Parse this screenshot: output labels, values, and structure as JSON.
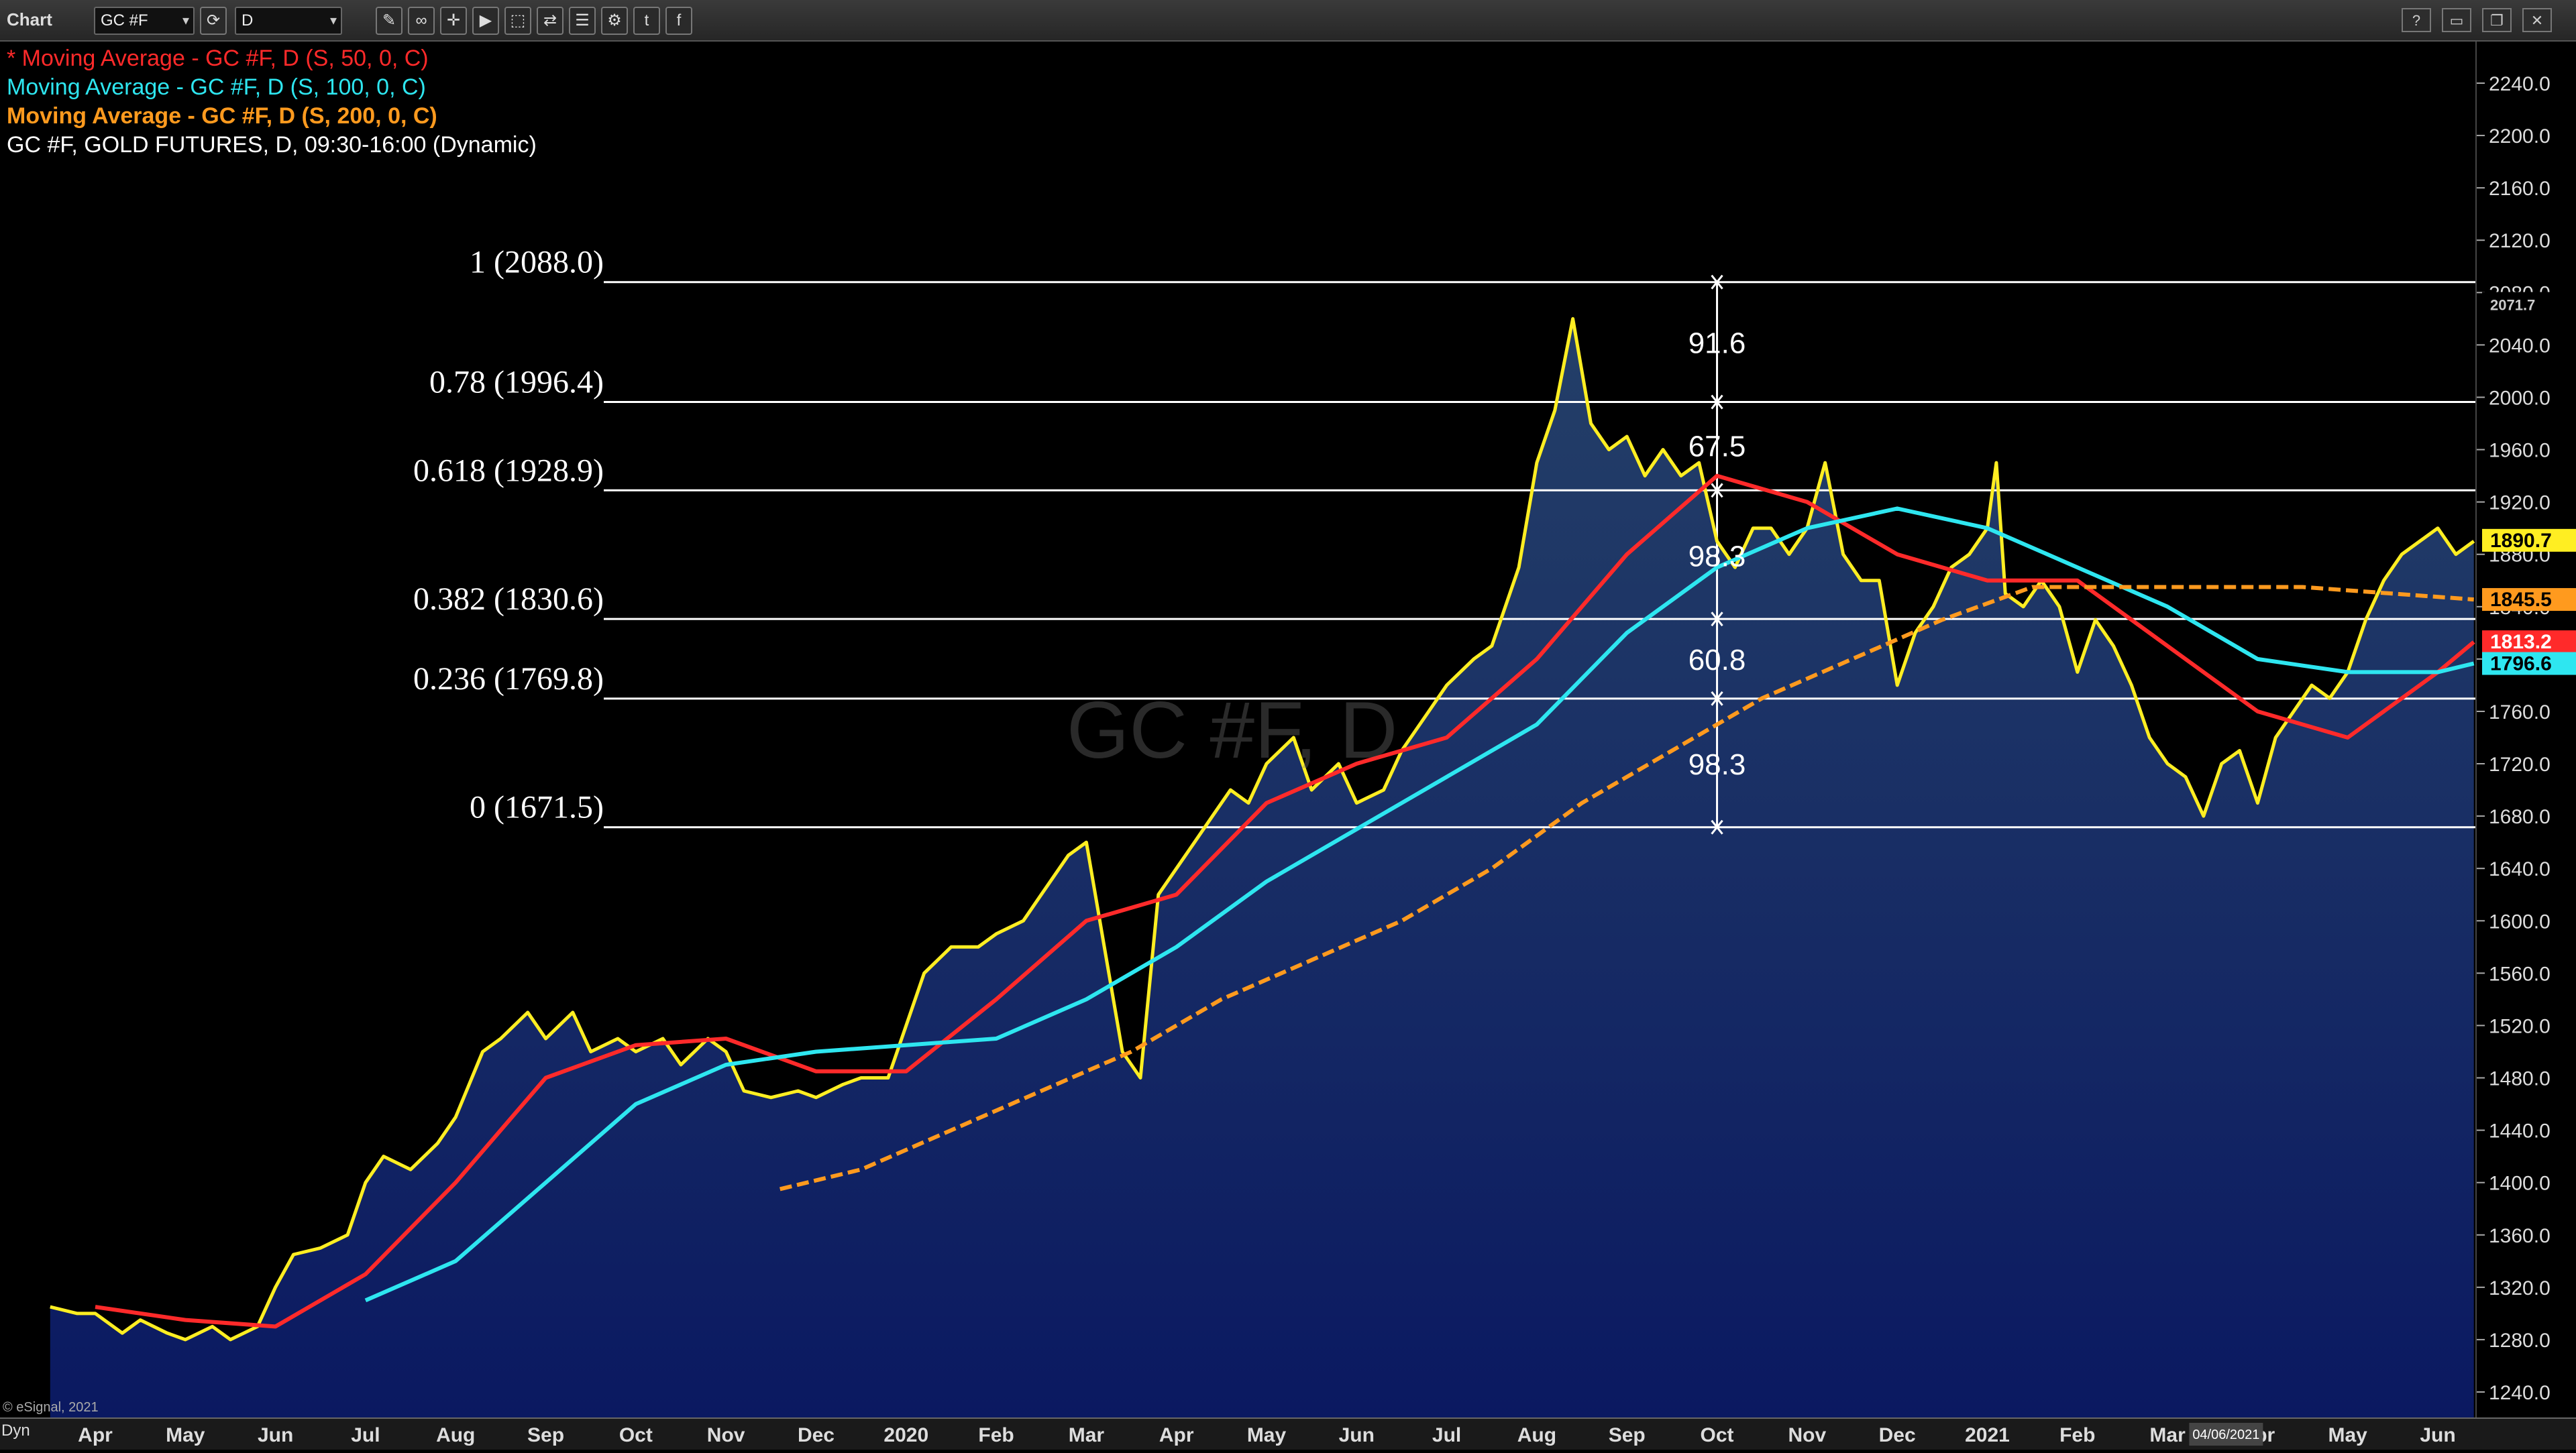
{
  "toolbar": {
    "title": "Chart",
    "symbol": "GC #F",
    "interval": "D",
    "tools": [
      "pencil-icon",
      "link-icon",
      "cursor-icon",
      "play-icon",
      "drawing-tool-icon",
      "share-icon",
      "layout-icon",
      "settings-icon",
      "twitter-icon",
      "facebook-icon"
    ]
  },
  "legend": [
    {
      "text": "* Moving Average - GC #F, D (S, 50, 0, C)",
      "color": "#ff2a2a"
    },
    {
      "text": "Moving Average - GC #F, D (S, 100, 0, C)",
      "color": "#2ee6f0"
    },
    {
      "text": "Moving Average - GC #F, D (S, 200, 0, C)",
      "color": "#ff9a1e"
    },
    {
      "text": "GC #F, GOLD FUTURES, D, 09:30-16:00 (Dynamic)",
      "color": "#ffffff"
    }
  ],
  "watermark": "GC #F, D",
  "copyright": "© eSignal, 2021",
  "bottom_left": "Dyn",
  "date_cursor": "04/06/2021",
  "chart_data": {
    "type": "line",
    "ylim": [
      1220,
      2270
    ],
    "y_ticks": [
      1240,
      1280,
      1320,
      1360,
      1400,
      1440,
      1480,
      1520,
      1560,
      1600,
      1640,
      1680,
      1720,
      1760,
      1800,
      1840,
      1880,
      1920,
      1960,
      2000,
      2040,
      2080,
      2120,
      2160,
      2200,
      2240
    ],
    "x_labels": [
      "Apr",
      "May",
      "Jun",
      "Jul",
      "Aug",
      "Sep",
      "Oct",
      "Nov",
      "Dec",
      "2020",
      "Feb",
      "Mar",
      "Apr",
      "May",
      "Jun",
      "Jul",
      "Aug",
      "Sep",
      "Oct",
      "Nov",
      "Dec",
      "2021",
      "Feb",
      "Mar",
      "Apr",
      "May",
      "Jun"
    ],
    "x_label_positions": [
      1,
      2,
      3,
      4,
      5,
      6,
      7,
      8,
      9,
      10,
      11,
      12,
      13,
      14,
      15,
      16,
      17,
      18,
      19,
      20,
      21,
      22,
      23,
      24,
      25,
      26,
      27
    ],
    "series": [
      {
        "name": "GC #F, GOLD FUTURES",
        "color": "#ffee22",
        "points": [
          [
            0.5,
            1305
          ],
          [
            0.8,
            1300
          ],
          [
            1.0,
            1300
          ],
          [
            1.3,
            1285
          ],
          [
            1.5,
            1295
          ],
          [
            1.8,
            1285
          ],
          [
            2.0,
            1280
          ],
          [
            2.3,
            1290
          ],
          [
            2.5,
            1280
          ],
          [
            2.8,
            1290
          ],
          [
            3.0,
            1320
          ],
          [
            3.2,
            1345
          ],
          [
            3.5,
            1350
          ],
          [
            3.8,
            1360
          ],
          [
            4.0,
            1400
          ],
          [
            4.2,
            1420
          ],
          [
            4.5,
            1410
          ],
          [
            4.8,
            1430
          ],
          [
            5.0,
            1450
          ],
          [
            5.3,
            1500
          ],
          [
            5.5,
            1510
          ],
          [
            5.8,
            1530
          ],
          [
            6.0,
            1510
          ],
          [
            6.3,
            1530
          ],
          [
            6.5,
            1500
          ],
          [
            6.8,
            1510
          ],
          [
            7.0,
            1500
          ],
          [
            7.3,
            1510
          ],
          [
            7.5,
            1490
          ],
          [
            7.8,
            1510
          ],
          [
            8.0,
            1500
          ],
          [
            8.2,
            1470
          ],
          [
            8.5,
            1465
          ],
          [
            8.8,
            1470
          ],
          [
            9.0,
            1465
          ],
          [
            9.3,
            1475
          ],
          [
            9.5,
            1480
          ],
          [
            9.8,
            1480
          ],
          [
            10.0,
            1520
          ],
          [
            10.2,
            1560
          ],
          [
            10.5,
            1580
          ],
          [
            10.8,
            1580
          ],
          [
            11.0,
            1590
          ],
          [
            11.3,
            1600
          ],
          [
            11.5,
            1620
          ],
          [
            11.8,
            1650
          ],
          [
            12.0,
            1660
          ],
          [
            12.2,
            1580
          ],
          [
            12.4,
            1500
          ],
          [
            12.6,
            1480
          ],
          [
            12.8,
            1620
          ],
          [
            13.0,
            1640
          ],
          [
            13.2,
            1660
          ],
          [
            13.4,
            1680
          ],
          [
            13.6,
            1700
          ],
          [
            13.8,
            1690
          ],
          [
            14.0,
            1720
          ],
          [
            14.3,
            1740
          ],
          [
            14.5,
            1700
          ],
          [
            14.8,
            1720
          ],
          [
            15.0,
            1690
          ],
          [
            15.3,
            1700
          ],
          [
            15.5,
            1730
          ],
          [
            15.8,
            1760
          ],
          [
            16.0,
            1780
          ],
          [
            16.3,
            1800
          ],
          [
            16.5,
            1810
          ],
          [
            16.8,
            1870
          ],
          [
            17.0,
            1950
          ],
          [
            17.2,
            1990
          ],
          [
            17.4,
            2060
          ],
          [
            17.6,
            1980
          ],
          [
            17.8,
            1960
          ],
          [
            18.0,
            1970
          ],
          [
            18.2,
            1940
          ],
          [
            18.4,
            1960
          ],
          [
            18.6,
            1940
          ],
          [
            18.8,
            1950
          ],
          [
            19.0,
            1890
          ],
          [
            19.2,
            1870
          ],
          [
            19.4,
            1900
          ],
          [
            19.6,
            1900
          ],
          [
            19.8,
            1880
          ],
          [
            20.0,
            1900
          ],
          [
            20.2,
            1950
          ],
          [
            20.4,
            1880
          ],
          [
            20.6,
            1860
          ],
          [
            20.8,
            1860
          ],
          [
            21.0,
            1780
          ],
          [
            21.2,
            1820
          ],
          [
            21.4,
            1840
          ],
          [
            21.6,
            1870
          ],
          [
            21.8,
            1880
          ],
          [
            22.0,
            1900
          ],
          [
            22.1,
            1950
          ],
          [
            22.2,
            1850
          ],
          [
            22.4,
            1840
          ],
          [
            22.6,
            1860
          ],
          [
            22.8,
            1840
          ],
          [
            23.0,
            1790
          ],
          [
            23.2,
            1830
          ],
          [
            23.4,
            1810
          ],
          [
            23.6,
            1780
          ],
          [
            23.8,
            1740
          ],
          [
            24.0,
            1720
          ],
          [
            24.2,
            1710
          ],
          [
            24.4,
            1680
          ],
          [
            24.6,
            1720
          ],
          [
            24.8,
            1730
          ],
          [
            25.0,
            1690
          ],
          [
            25.2,
            1740
          ],
          [
            25.4,
            1760
          ],
          [
            25.6,
            1780
          ],
          [
            25.8,
            1770
          ],
          [
            26.0,
            1790
          ],
          [
            26.2,
            1830
          ],
          [
            26.4,
            1860
          ],
          [
            26.6,
            1880
          ],
          [
            26.8,
            1890
          ],
          [
            27.0,
            1900
          ],
          [
            27.2,
            1880
          ],
          [
            27.4,
            1890
          ]
        ]
      },
      {
        "name": "MA 50",
        "color": "#ff2a2a",
        "points": [
          [
            1.0,
            1305
          ],
          [
            2.0,
            1295
          ],
          [
            3.0,
            1290
          ],
          [
            4.0,
            1330
          ],
          [
            5.0,
            1400
          ],
          [
            6.0,
            1480
          ],
          [
            7.0,
            1505
          ],
          [
            8.0,
            1510
          ],
          [
            9.0,
            1485
          ],
          [
            10.0,
            1485
          ],
          [
            11.0,
            1540
          ],
          [
            12.0,
            1600
          ],
          [
            13.0,
            1620
          ],
          [
            14.0,
            1690
          ],
          [
            15.0,
            1720
          ],
          [
            16.0,
            1740
          ],
          [
            17.0,
            1800
          ],
          [
            18.0,
            1880
          ],
          [
            19.0,
            1940
          ],
          [
            20.0,
            1920
          ],
          [
            21.0,
            1880
          ],
          [
            22.0,
            1860
          ],
          [
            23.0,
            1860
          ],
          [
            24.0,
            1810
          ],
          [
            25.0,
            1760
          ],
          [
            26.0,
            1740
          ],
          [
            27.0,
            1790
          ],
          [
            27.4,
            1813
          ]
        ]
      },
      {
        "name": "MA 100",
        "color": "#2ee6f0",
        "points": [
          [
            4.0,
            1310
          ],
          [
            5.0,
            1340
          ],
          [
            6.0,
            1400
          ],
          [
            7.0,
            1460
          ],
          [
            8.0,
            1490
          ],
          [
            9.0,
            1500
          ],
          [
            10.0,
            1505
          ],
          [
            11.0,
            1510
          ],
          [
            12.0,
            1540
          ],
          [
            13.0,
            1580
          ],
          [
            14.0,
            1630
          ],
          [
            15.0,
            1670
          ],
          [
            16.0,
            1710
          ],
          [
            17.0,
            1750
          ],
          [
            18.0,
            1820
          ],
          [
            19.0,
            1870
          ],
          [
            20.0,
            1900
          ],
          [
            21.0,
            1915
          ],
          [
            22.0,
            1900
          ],
          [
            23.0,
            1870
          ],
          [
            24.0,
            1840
          ],
          [
            25.0,
            1800
          ],
          [
            26.0,
            1790
          ],
          [
            27.0,
            1790
          ],
          [
            27.4,
            1796.6
          ]
        ]
      },
      {
        "name": "MA 200",
        "color": "#ff9a1e",
        "points": [
          [
            8.6,
            1395
          ],
          [
            9.5,
            1410
          ],
          [
            10.5,
            1440
          ],
          [
            11.5,
            1470
          ],
          [
            12.5,
            1500
          ],
          [
            13.5,
            1540
          ],
          [
            14.5,
            1570
          ],
          [
            15.5,
            1600
          ],
          [
            16.5,
            1640
          ],
          [
            17.5,
            1690
          ],
          [
            18.5,
            1730
          ],
          [
            19.5,
            1770
          ],
          [
            20.5,
            1800
          ],
          [
            21.5,
            1830
          ],
          [
            22.5,
            1855
          ],
          [
            23.5,
            1855
          ],
          [
            24.5,
            1855
          ],
          [
            25.5,
            1855
          ],
          [
            26.5,
            1850
          ],
          [
            27.4,
            1845.5
          ]
        ]
      }
    ],
    "fib_levels": [
      {
        "label": "1 (2088.0)",
        "value": 2088.0
      },
      {
        "label": "0.78 (1996.4)",
        "value": 1996.4
      },
      {
        "label": "0.618 (1928.9)",
        "value": 1928.9
      },
      {
        "label": "0.382 (1830.6)",
        "value": 1830.6
      },
      {
        "label": "0.236 (1769.8)",
        "value": 1769.8
      },
      {
        "label": "0 (1671.5)",
        "value": 1671.5
      }
    ],
    "fib_segments": [
      {
        "label": "91.6",
        "value": 2042
      },
      {
        "label": "67.5",
        "value": 1963
      },
      {
        "label": "98.3",
        "value": 1879
      },
      {
        "label": "60.8",
        "value": 1800
      },
      {
        "label": "98.3",
        "value": 1720
      }
    ],
    "fib_x": 19.0,
    "price_badges": [
      {
        "label": "2071.7",
        "value": 2071.7,
        "bg": "#000",
        "fg": "#ccc"
      },
      {
        "label": "1890.7",
        "value": 1890.7,
        "bg": "#ffee22",
        "fg": "#000"
      },
      {
        "label": "1845.5",
        "value": 1845.5,
        "bg": "#ff9a1e",
        "fg": "#000"
      },
      {
        "label": "1813.2",
        "value": 1813.2,
        "bg": "#ff2a2a",
        "fg": "#fff"
      },
      {
        "label": "1796.6",
        "value": 1796.6,
        "bg": "#2ee6f0",
        "fg": "#000"
      }
    ]
  }
}
